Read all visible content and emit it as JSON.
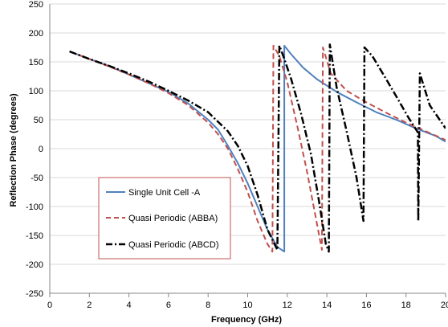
{
  "chart_data": {
    "type": "line",
    "title": "",
    "xlabel": "Frequency (GHz)",
    "ylabel": "Reflection Phase (degrees)",
    "xlim": [
      0,
      20
    ],
    "ylim": [
      -250,
      250
    ],
    "x_ticks": [
      "0",
      "2",
      "4",
      "6",
      "8",
      "10",
      "12",
      "14",
      "16",
      "18",
      "20"
    ],
    "y_ticks": [
      "250",
      "200",
      "150",
      "100",
      "50",
      "0",
      "-50",
      "-100",
      "-150",
      "-200",
      "-250"
    ],
    "grid": "horizontal",
    "legend_position": "bottom-left",
    "series": [
      {
        "name": "Single Unit Cell -A",
        "color": "#4f81bd",
        "dash": "solid",
        "x": [
          1,
          2,
          3,
          4,
          5,
          6,
          7,
          8,
          8.5,
          9,
          9.5,
          10,
          10.5,
          11,
          11.5,
          11.85,
          11.85,
          12.2,
          12.8,
          13.5,
          14.5,
          15.5,
          16.5,
          17.5,
          18.5,
          19.5,
          20
        ],
        "y": [
          168,
          155,
          143,
          128,
          113,
          98,
          78,
          50,
          33,
          5,
          -25,
          -60,
          -100,
          -140,
          -170,
          -178,
          178,
          163,
          140,
          120,
          98,
          80,
          63,
          50,
          35,
          22,
          12
        ]
      },
      {
        "name": "Quasi Periodic (ABBA)",
        "color": "#c0504d",
        "dash": "dashed",
        "x": [
          1,
          2,
          3,
          4,
          5,
          6,
          7,
          8,
          8.5,
          9,
          9.5,
          10,
          10.5,
          11,
          11.25,
          11.3,
          11.6,
          12,
          12.5,
          13,
          13.5,
          13.75,
          13.8,
          14.2,
          15,
          16,
          17,
          18,
          19,
          20
        ],
        "y": [
          168,
          155,
          142,
          128,
          113,
          96,
          75,
          45,
          25,
          0,
          -35,
          -75,
          -125,
          -165,
          -178,
          178,
          160,
          115,
          40,
          -40,
          -130,
          -175,
          175,
          130,
          100,
          80,
          62,
          45,
          30,
          15
        ],
        "label": "Quasi Periodic (ABBA)"
      },
      {
        "name": "Quasi Periodic (ABCD)",
        "color": "#000000",
        "dash": "dashdot",
        "x": [
          1,
          2,
          3,
          4,
          5,
          6,
          7,
          8,
          9,
          9.5,
          10,
          10.5,
          11,
          11.5,
          11.6,
          11.8,
          12.2,
          12.7,
          13.2,
          13.6,
          13.95,
          14.1,
          14.15,
          14.5,
          15,
          15.5,
          15.85,
          15.9,
          16.3,
          17,
          17.6,
          18.1,
          18.6,
          18.62,
          18.7,
          19.2,
          19.7,
          20
        ],
        "y": [
          168,
          155,
          143,
          130,
          116,
          100,
          83,
          63,
          30,
          5,
          -30,
          -80,
          -140,
          -175,
          178,
          160,
          120,
          60,
          -10,
          -90,
          -165,
          -178,
          180,
          105,
          30,
          -50,
          -125,
          175,
          160,
          120,
          85,
          55,
          28,
          -125,
          130,
          75,
          50,
          35
        ]
      }
    ]
  }
}
